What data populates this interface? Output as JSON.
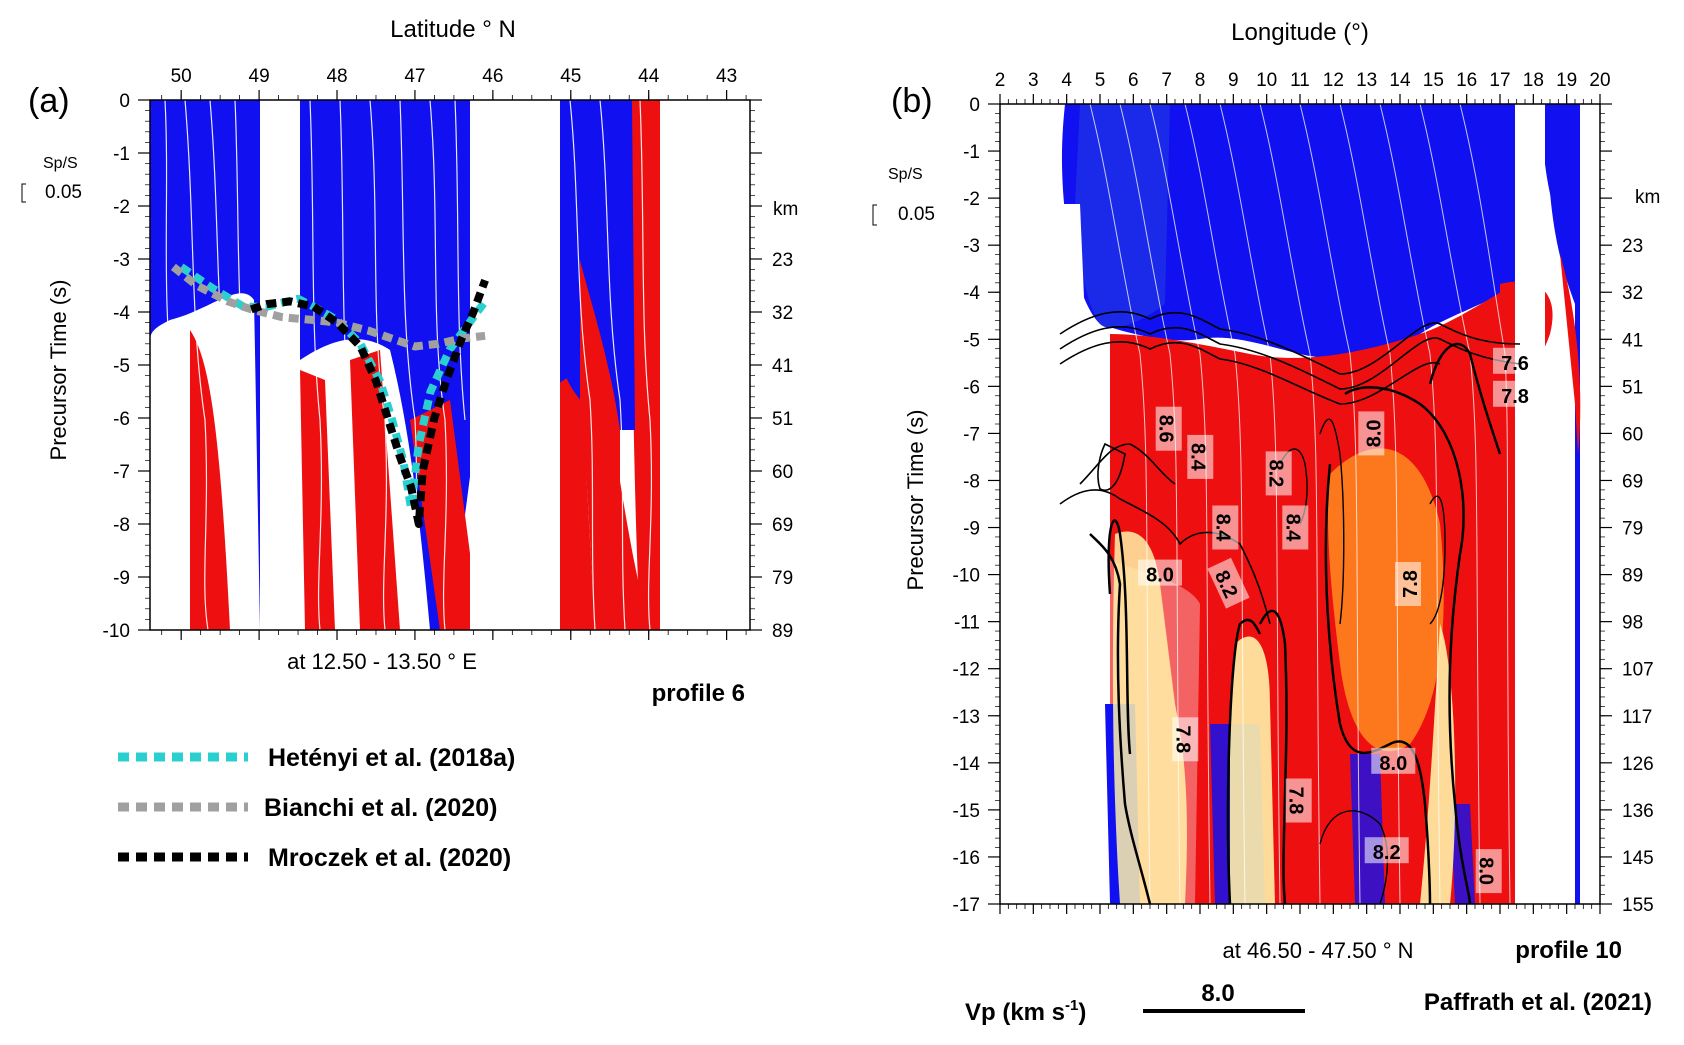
{
  "chart_data": [
    {
      "type": "heatmap",
      "panel_label": "(a)",
      "x_axis_title": "Latitude ° N",
      "x_ticks": [
        50,
        49,
        48,
        47,
        46,
        45,
        44,
        43
      ],
      "xlim": [
        50.4,
        42.7
      ],
      "y_axis_title": "Precursor Time (s)",
      "y_ticks": [
        0,
        -1,
        -2,
        -3,
        -4,
        -5,
        -6,
        -7,
        -8,
        -9,
        -10
      ],
      "ylim": [
        0,
        -10
      ],
      "depth_unit": "km",
      "depth_ticks": [
        {
          "t": -3,
          "km": "23"
        },
        {
          "t": -4,
          "km": "32"
        },
        {
          "t": -5,
          "km": "41"
        },
        {
          "t": -6,
          "km": "51"
        },
        {
          "t": -7,
          "km": "60"
        },
        {
          "t": -8,
          "km": "69"
        },
        {
          "t": -9,
          "km": "79"
        },
        {
          "t": -10,
          "km": "89"
        }
      ],
      "scale_label": "Sp/S",
      "scale_value": "0.05",
      "location_note": "at 12.50 - 13.50 ° E",
      "profile_label": "profile 6",
      "series": [
        {
          "name": "Hetényi et al. (2018a)",
          "color": "#2ad0d0",
          "points": [
            [
              50.0,
              -3.15
            ],
            [
              49.6,
              -3.55
            ],
            [
              49.2,
              -3.9
            ],
            [
              48.9,
              -3.9
            ],
            [
              48.5,
              -3.75
            ],
            [
              48.3,
              -3.9
            ],
            [
              48.0,
              -4.15
            ],
            [
              47.7,
              -4.6
            ],
            [
              47.45,
              -5.3
            ],
            [
              47.3,
              -6.0
            ],
            [
              47.15,
              -6.8
            ],
            [
              47.05,
              -7.7
            ],
            [
              46.95,
              -6.5
            ],
            [
              46.8,
              -5.5
            ],
            [
              46.55,
              -4.7
            ],
            [
              46.3,
              -4.2
            ],
            [
              46.1,
              -3.8
            ]
          ]
        },
        {
          "name": "Bianchi et al. (2020)",
          "color": "#a0a0a0",
          "points": [
            [
              50.1,
              -3.15
            ],
            [
              49.8,
              -3.5
            ],
            [
              49.4,
              -3.8
            ],
            [
              49.1,
              -3.95
            ],
            [
              48.7,
              -4.1
            ],
            [
              48.3,
              -4.15
            ],
            [
              48.0,
              -4.2
            ],
            [
              47.6,
              -4.35
            ],
            [
              47.3,
              -4.5
            ],
            [
              47.0,
              -4.65
            ],
            [
              46.7,
              -4.6
            ],
            [
              46.4,
              -4.5
            ],
            [
              46.1,
              -4.45
            ]
          ]
        },
        {
          "name": "Mroczek et al. (2020)",
          "color": "#000000",
          "points": [
            [
              49.1,
              -3.95
            ],
            [
              48.9,
              -3.85
            ],
            [
              48.6,
              -3.8
            ],
            [
              48.3,
              -3.9
            ],
            [
              48.0,
              -4.2
            ],
            [
              47.7,
              -4.65
            ],
            [
              47.5,
              -5.3
            ],
            [
              47.35,
              -6.0
            ],
            [
              47.2,
              -6.7
            ],
            [
              47.05,
              -7.3
            ],
            [
              46.95,
              -8.0
            ],
            [
              46.9,
              -7.0
            ],
            [
              46.75,
              -6.0
            ],
            [
              46.6,
              -5.3
            ],
            [
              46.4,
              -4.5
            ],
            [
              46.25,
              -4.0
            ],
            [
              46.1,
              -3.4
            ]
          ]
        }
      ]
    },
    {
      "type": "heatmap",
      "panel_label": "(b)",
      "x_axis_title": "Longitude (°)",
      "x_ticks": [
        2,
        3,
        4,
        5,
        6,
        7,
        8,
        9,
        10,
        11,
        12,
        13,
        14,
        15,
        16,
        17,
        18,
        19,
        20
      ],
      "xlim": [
        2,
        20
      ],
      "y_axis_title": "Precursor Time (s)",
      "y_ticks": [
        0,
        -1,
        -2,
        -3,
        -4,
        -5,
        -6,
        -7,
        -8,
        -9,
        -10,
        -11,
        -12,
        -13,
        -14,
        -15,
        -16,
        -17
      ],
      "ylim": [
        0,
        -17
      ],
      "depth_unit": "km",
      "depth_ticks": [
        {
          "t": -3,
          "km": "23"
        },
        {
          "t": -4,
          "km": "32"
        },
        {
          "t": -5,
          "km": "41"
        },
        {
          "t": -6,
          "km": "51"
        },
        {
          "t": -7,
          "km": "60"
        },
        {
          "t": -8,
          "km": "69"
        },
        {
          "t": -9,
          "km": "79"
        },
        {
          "t": -10,
          "km": "89"
        },
        {
          "t": -11,
          "km": "98"
        },
        {
          "t": -12,
          "km": "107"
        },
        {
          "t": -13,
          "km": "117"
        },
        {
          "t": -14,
          "km": "126"
        },
        {
          "t": -15,
          "km": "136"
        },
        {
          "t": -16,
          "km": "145"
        },
        {
          "t": -17,
          "km": "155"
        }
      ],
      "scale_label": "Sp/S",
      "scale_value": "0.05",
      "location_note": "at 46.50 - 47.50 ° N",
      "profile_label": "profile 10",
      "source_label": "Paffrath et al. (2021)",
      "vp_label": "Vp (km s",
      "vp_superscript": "-1",
      "vp_label_close": ")",
      "vp_value": "8.0",
      "contour_labels": [
        {
          "x": 17.45,
          "y": -5.5,
          "text": "7.6",
          "rot": 0
        },
        {
          "x": 17.45,
          "y": -6.2,
          "text": "7.8",
          "rot": 0
        },
        {
          "x": 7.0,
          "y": -6.9,
          "text": "8.6",
          "rot": 90
        },
        {
          "x": 7.95,
          "y": -7.5,
          "text": "8.4",
          "rot": 90
        },
        {
          "x": 10.3,
          "y": -7.85,
          "text": "8.2",
          "rot": 90
        },
        {
          "x": 13.2,
          "y": -7.0,
          "text": "8.0",
          "rot": 270
        },
        {
          "x": 8.7,
          "y": -9.0,
          "text": "8.4",
          "rot": 90
        },
        {
          "x": 10.8,
          "y": -9.0,
          "text": "8.4",
          "rot": 90
        },
        {
          "x": 6.8,
          "y": -10.0,
          "text": "8.0",
          "rot": 0
        },
        {
          "x": 8.8,
          "y": -10.2,
          "text": "8.2",
          "rot": 65
        },
        {
          "x": 14.3,
          "y": -10.2,
          "text": "7.8",
          "rot": 270
        },
        {
          "x": 7.5,
          "y": -13.5,
          "text": "7.8",
          "rot": 90
        },
        {
          "x": 10.9,
          "y": -14.8,
          "text": "7.8",
          "rot": 90
        },
        {
          "x": 13.8,
          "y": -14.0,
          "text": "8.0",
          "rot": 0
        },
        {
          "x": 13.6,
          "y": -15.9,
          "text": "8.2",
          "rot": 0
        },
        {
          "x": 16.6,
          "y": -16.3,
          "text": "8.0",
          "rot": 90
        }
      ]
    }
  ]
}
